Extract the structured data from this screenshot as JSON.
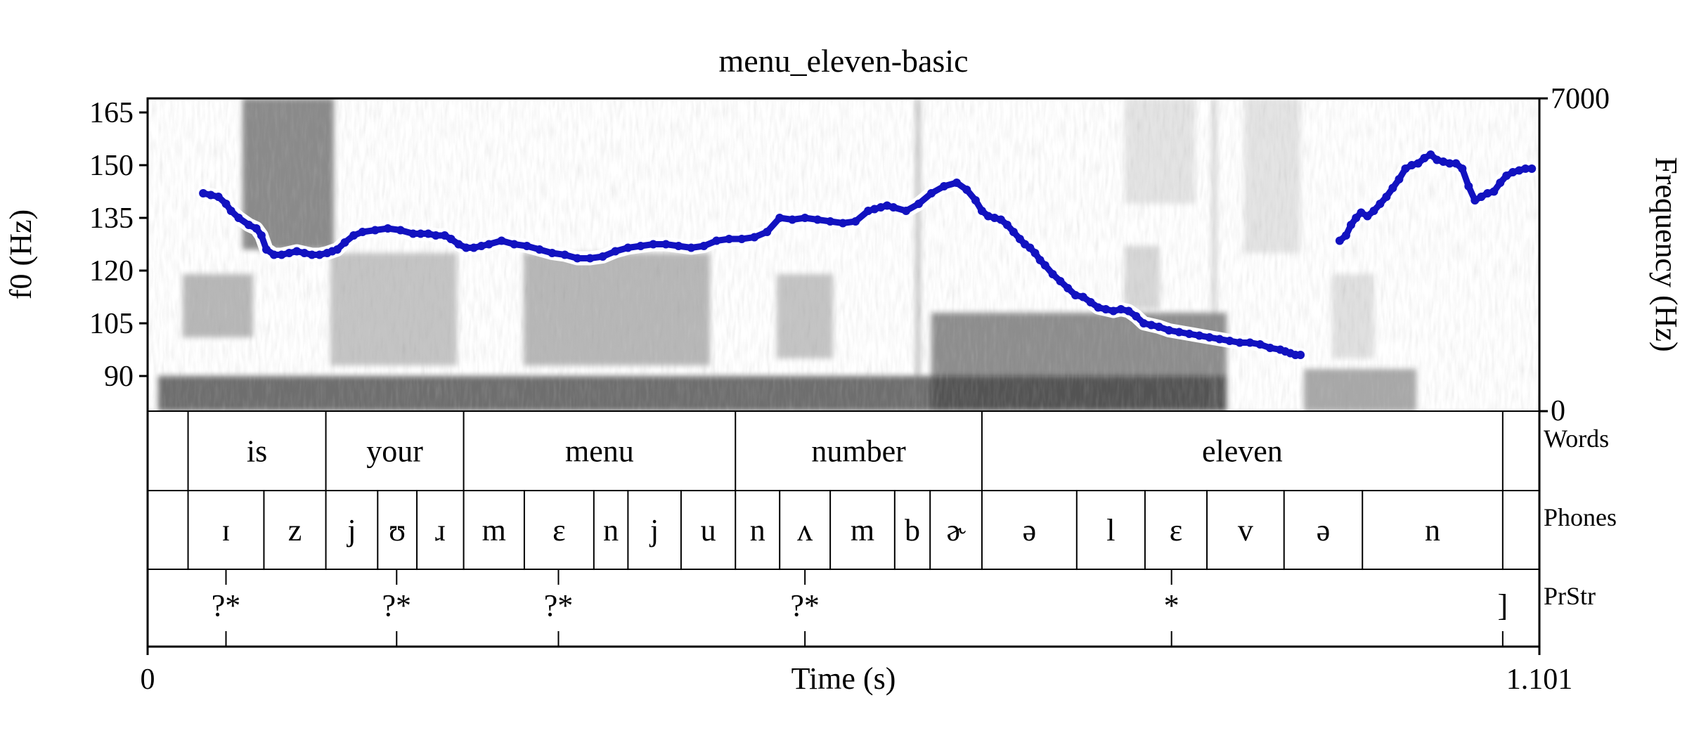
{
  "chart_data": {
    "type": "line",
    "title": "menu_eleven-basic",
    "xlabel": "Time (s)",
    "ylabel_left": "f0 (Hz)",
    "ylabel_right": "Frequency (Hz)",
    "xlim": [
      0,
      1.101
    ],
    "x_tick_labels": [
      "0",
      "1.101"
    ],
    "ylim_left": [
      80,
      169
    ],
    "y_ticks_left": [
      90,
      105,
      120,
      135,
      150,
      165
    ],
    "y_tick_labels_left": [
      "90",
      "105",
      "120",
      "135",
      "150",
      "165"
    ],
    "ylim_right": [
      0,
      7000
    ],
    "y_tick_labels_right": [
      "0",
      "7000"
    ],
    "series": [
      {
        "color": "#1212c0",
        "segments": [
          {
            "x": [
              0.044,
              0.05,
              0.056,
              0.062,
              0.066,
              0.072,
              0.08,
              0.086,
              0.09,
              0.094,
              0.1,
              0.106,
              0.112,
              0.118,
              0.124,
              0.13,
              0.136,
              0.142,
              0.146,
              0.15,
              0.156,
              0.163,
              0.17,
              0.18,
              0.19,
              0.2,
              0.21,
              0.216,
              0.222,
              0.228,
              0.235,
              0.24,
              0.246,
              0.252,
              0.258,
              0.264,
              0.27,
              0.28,
              0.29,
              0.3,
              0.31,
              0.32,
              0.33,
              0.34,
              0.35,
              0.36,
              0.37,
              0.38,
              0.39,
              0.4,
              0.41,
              0.42,
              0.43,
              0.44,
              0.45,
              0.46,
              0.47,
              0.48,
              0.49,
              0.5,
              0.51,
              0.52,
              0.53,
              0.54,
              0.55,
              0.56,
              0.57,
              0.575,
              0.58,
              0.585,
              0.59,
              0.6,
              0.61,
              0.62,
              0.63,
              0.64,
              0.648,
              0.655,
              0.66,
              0.665,
              0.67,
              0.675,
              0.68,
              0.685,
              0.69,
              0.694,
              0.698,
              0.702,
              0.706,
              0.71,
              0.716,
              0.722,
              0.728,
              0.734,
              0.74,
              0.746,
              0.752,
              0.758,
              0.764,
              0.77,
              0.776,
              0.782,
              0.788,
              0.794,
              0.8,
              0.808,
              0.816,
              0.824,
              0.832,
              0.84,
              0.848,
              0.856,
              0.864,
              0.872,
              0.88,
              0.888,
              0.896,
              0.9,
              0.904,
              0.908,
              0.912
            ],
            "y": [
              142,
              141.5,
              141,
              139,
              137,
              135,
              133,
              132,
              130,
              126,
              124.5,
              124.5,
              125,
              125.5,
              125,
              124.5,
              124.5,
              125,
              125.5,
              126,
              128,
              130,
              131,
              131.5,
              132,
              131.5,
              130.5,
              130.5,
              130.5,
              130,
              130,
              129,
              127.5,
              126.5,
              126.5,
              127,
              127.5,
              128.5,
              127.5,
              127,
              126,
              125,
              124.5,
              123.5,
              123.5,
              124,
              125.5,
              126.5,
              127,
              127.5,
              127.5,
              127,
              126.5,
              127,
              128.5,
              129,
              129,
              129.5,
              131,
              135,
              134.5,
              135,
              134.5,
              134,
              133.5,
              134,
              137,
              137.5,
              138,
              138.5,
              138,
              137,
              139,
              142,
              144,
              145,
              143,
              140,
              137,
              135.5,
              135,
              134.5,
              133,
              131,
              129,
              127.5,
              126.5,
              125,
              123,
              121.5,
              119,
              117,
              115,
              113,
              112.5,
              111,
              109.5,
              109,
              108.5,
              109,
              108.5,
              107,
              105,
              104.5,
              104,
              103,
              102.5,
              102,
              101.5,
              101,
              100.5,
              100,
              99.5,
              99.5,
              99,
              98,
              97.5,
              97,
              96.5,
              96,
              96
            ]
          },
          {
            "x": [
              0.943,
              0.948,
              0.952,
              0.956,
              0.96,
              0.965,
              0.97,
              0.975,
              0.98,
              0.985,
              0.99,
              0.995,
              1.0,
              1.005,
              1.01,
              1.015,
              1.02,
              1.025,
              1.03,
              1.035,
              1.04,
              1.045,
              1.05,
              1.055,
              1.06,
              1.065,
              1.07,
              1.075,
              1.08,
              1.085,
              1.09,
              1.095
            ],
            "y": [
              128.5,
              130,
              133,
              135,
              136.5,
              135.5,
              137,
              139,
              141,
              143.5,
              146,
              149,
              150,
              150.5,
              152,
              153,
              151.5,
              151,
              150.5,
              150.5,
              149,
              144,
              140,
              141,
              142,
              142.5,
              145,
              147,
              148,
              148.5,
              149,
              149
            ]
          }
        ]
      }
    ]
  },
  "tiers": [
    {
      "name": "Words",
      "boundaries": [
        0.032,
        0.141,
        0.25,
        0.465,
        0.66,
        1.072
      ],
      "labels": [
        {
          "t": 0.0865,
          "text": "is"
        },
        {
          "t": 0.1955,
          "text": "your"
        },
        {
          "t": 0.3575,
          "text": "menu"
        },
        {
          "t": 0.5625,
          "text": "number"
        },
        {
          "t": 0.866,
          "text": "eleven"
        }
      ]
    },
    {
      "name": "Phones",
      "boundaries": [
        0.032,
        0.092,
        0.141,
        0.182,
        0.213,
        0.25,
        0.298,
        0.353,
        0.38,
        0.422,
        0.465,
        0.5,
        0.54,
        0.591,
        0.619,
        0.66,
        0.735,
        0.789,
        0.838,
        0.899,
        0.961,
        1.072
      ],
      "labels": [
        {
          "t": 0.062,
          "text": "ɪ"
        },
        {
          "t": 0.1165,
          "text": "z"
        },
        {
          "t": 0.1615,
          "text": "j"
        },
        {
          "t": 0.1975,
          "text": "ʊ"
        },
        {
          "t": 0.2315,
          "text": "ɹ"
        },
        {
          "t": 0.274,
          "text": "m"
        },
        {
          "t": 0.3255,
          "text": "ɛ"
        },
        {
          "t": 0.3665,
          "text": "n"
        },
        {
          "t": 0.401,
          "text": "j"
        },
        {
          "t": 0.4435,
          "text": "u"
        },
        {
          "t": 0.4825,
          "text": "n"
        },
        {
          "t": 0.52,
          "text": "ʌ"
        },
        {
          "t": 0.5655,
          "text": "m"
        },
        {
          "t": 0.605,
          "text": "b"
        },
        {
          "t": 0.6395,
          "text": "ɚ"
        },
        {
          "t": 0.6975,
          "text": "ə"
        },
        {
          "t": 0.762,
          "text": "l"
        },
        {
          "t": 0.8135,
          "text": "ɛ"
        },
        {
          "t": 0.8685,
          "text": "v"
        },
        {
          "t": 0.93,
          "text": "ə"
        },
        {
          "t": 1.0165,
          "text": "n"
        }
      ]
    },
    {
      "name": "PrStr",
      "points": [
        {
          "t": 0.062,
          "text": "?*"
        },
        {
          "t": 0.197,
          "text": "?*"
        },
        {
          "t": 0.325,
          "text": "?*"
        },
        {
          "t": 0.52,
          "text": "?*"
        },
        {
          "t": 0.81,
          "text": "*"
        },
        {
          "t": 1.072,
          "text": "]"
        }
      ]
    }
  ]
}
